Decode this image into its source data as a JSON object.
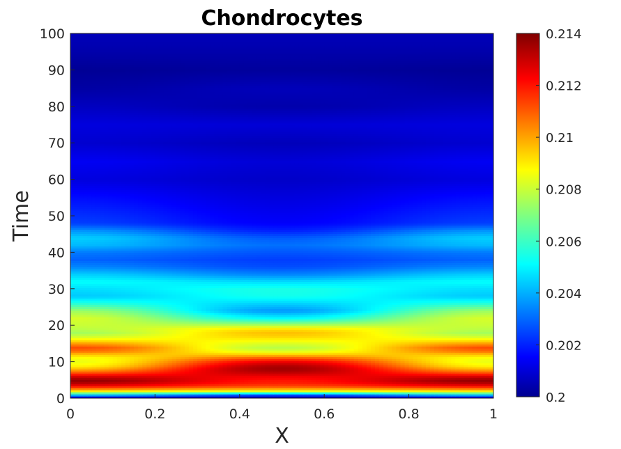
{
  "chart_data": {
    "type": "heatmap",
    "title": "Chondrocytes",
    "xlabel": "X",
    "ylabel": "Time",
    "xlim": [
      0,
      1
    ],
    "ylim": [
      0,
      100
    ],
    "xticks": [
      "0",
      "0.2",
      "0.4",
      "0.6",
      "0.8",
      "1"
    ],
    "yticks": [
      "0",
      "10",
      "20",
      "30",
      "40",
      "50",
      "60",
      "70",
      "80",
      "90",
      "100"
    ],
    "colormap": "jet",
    "colorbar": {
      "range": [
        0.2,
        0.214
      ],
      "ticks": [
        "0.2",
        "0.202",
        "0.204",
        "0.206",
        "0.208",
        "0.21",
        "0.212",
        "0.214"
      ]
    },
    "time_grid": [
      0,
      1,
      2,
      3,
      4,
      5,
      6,
      7,
      8,
      9,
      10,
      11,
      12,
      13,
      14,
      15,
      16,
      17,
      18,
      19,
      20,
      22,
      24,
      26,
      28,
      30,
      32,
      34,
      36,
      38,
      40,
      42,
      44,
      46,
      48,
      50,
      55,
      60,
      65,
      70,
      75,
      80,
      85,
      90,
      95,
      100
    ],
    "edge_values": [
      0.2,
      0.2048,
      0.209,
      0.2115,
      0.2132,
      0.2138,
      0.2128,
      0.2112,
      0.2098,
      0.2088,
      0.2085,
      0.2086,
      0.2095,
      0.2108,
      0.2112,
      0.2102,
      0.209,
      0.208,
      0.2075,
      0.2078,
      0.208,
      0.2082,
      0.2074,
      0.2058,
      0.2045,
      0.2048,
      0.2053,
      0.2046,
      0.2036,
      0.2031,
      0.2034,
      0.2043,
      0.2046,
      0.2038,
      0.2026,
      0.2024,
      0.2019,
      0.2013,
      0.2016,
      0.2011,
      0.2013,
      0.2009,
      0.2005,
      0.2003,
      0.2006,
      0.2008
    ],
    "center_values": [
      0.2,
      0.203,
      0.2085,
      0.2108,
      0.2118,
      0.212,
      0.2124,
      0.2131,
      0.2136,
      0.2133,
      0.2125,
      0.2112,
      0.2095,
      0.2082,
      0.2078,
      0.2082,
      0.2088,
      0.2094,
      0.2096,
      0.2092,
      0.2078,
      0.2052,
      0.2038,
      0.2046,
      0.2055,
      0.2056,
      0.2048,
      0.2036,
      0.2028,
      0.2026,
      0.2029,
      0.2033,
      0.203,
      0.2022,
      0.2017,
      0.2016,
      0.2013,
      0.201,
      0.2012,
      0.2008,
      0.2012,
      0.2006,
      0.2008,
      0.2004,
      0.2006,
      0.2008
    ]
  }
}
